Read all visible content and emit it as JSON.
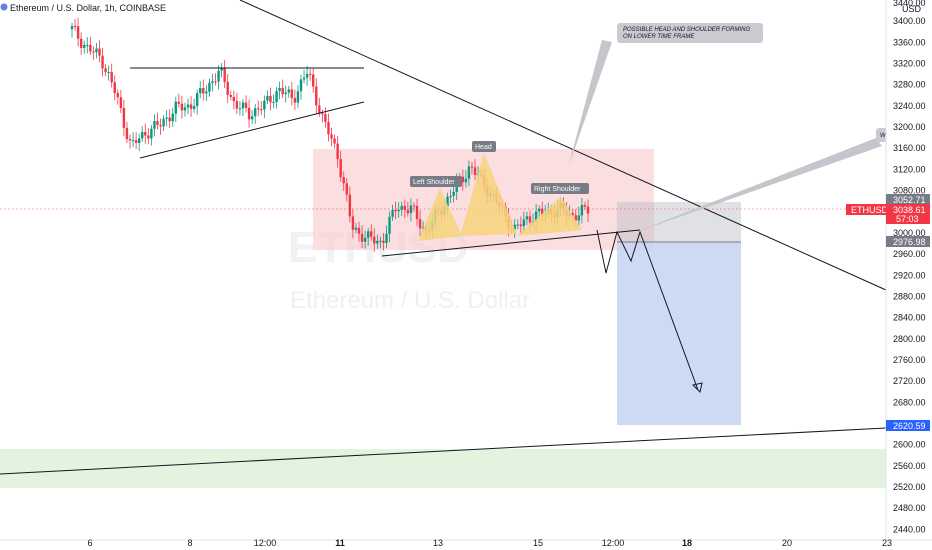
{
  "chart_data": {
    "type": "candlestick",
    "title": "Ethereum / U.S. Dollar, 1h, COINBASE",
    "symbol": "ETHUSD",
    "currency": "USD",
    "watermark_symbol": "ETHUSD",
    "watermark_name": "Ethereum / U.S. Dollar",
    "ylim": [
      2420,
      3440
    ],
    "y_ticks": [
      3400,
      3360,
      3320,
      3280,
      3240,
      3200,
      3160,
      3120,
      3080,
      3000,
      2960,
      2920,
      2880,
      2840,
      2800,
      2760,
      2720,
      2680,
      2640,
      2600,
      2560,
      2520,
      2480,
      2440
    ],
    "y_top_label": "3440.00",
    "x_ticks": [
      {
        "label": "6",
        "bold": false
      },
      {
        "label": "8",
        "bold": false
      },
      {
        "label": "12:00",
        "bold": false
      },
      {
        "label": "11",
        "bold": true
      },
      {
        "label": "13",
        "bold": false
      },
      {
        "label": "15",
        "bold": false
      },
      {
        "label": "12:00",
        "bold": false
      },
      {
        "label": "18",
        "bold": true
      },
      {
        "label": "20",
        "bold": false
      },
      {
        "label": "23",
        "bold": false
      }
    ],
    "price_path": [
      [
        3440,
        3330
      ],
      [
        3380,
        3320
      ],
      [
        3360,
        3300
      ],
      [
        3290,
        3230
      ],
      [
        3175,
        3150
      ],
      [
        3180,
        3200
      ],
      [
        3220,
        3190
      ],
      [
        3240,
        3230
      ],
      [
        3260,
        3220
      ],
      [
        3280,
        3260
      ],
      [
        3310,
        3300
      ],
      [
        3260,
        3230
      ],
      [
        3200,
        3250
      ],
      [
        3230,
        3250
      ],
      [
        3280,
        3260
      ],
      [
        3240,
        3270
      ],
      [
        3310,
        3300
      ],
      [
        3230,
        3200
      ],
      [
        3180,
        3120
      ],
      [
        3040,
        2980
      ],
      [
        2980,
        3000
      ],
      [
        2975,
        2990
      ],
      [
        3040,
        3060
      ],
      [
        3070,
        3020
      ],
      [
        2995,
        3010
      ],
      [
        3030,
        3060
      ],
      [
        3070,
        3100
      ],
      [
        3110,
        3140
      ],
      [
        3100,
        3080
      ],
      [
        3060,
        3040
      ],
      [
        3000,
        3010
      ],
      [
        3020,
        3040
      ],
      [
        3045,
        3030
      ],
      [
        3040,
        3050
      ],
      [
        3035,
        3030
      ],
      [
        3048,
        3040
      ]
    ],
    "annotations": {
      "callout_main": "POSSIBLE HEAD AND SHOULDER FORMING\nON LOWER TIME FRAME",
      "callout_right": "W",
      "head": "Head",
      "left_shoulder": "Left Shoulder",
      "right_shoulder": "Right Shoulder"
    },
    "price_labels": {
      "upper": "3052.71",
      "current": "3038.61",
      "countdown": "57:03",
      "entry": "2976.98",
      "target": "2620.59"
    },
    "current_price": 3038.61,
    "support_zone": [
      2500,
      2570
    ]
  }
}
